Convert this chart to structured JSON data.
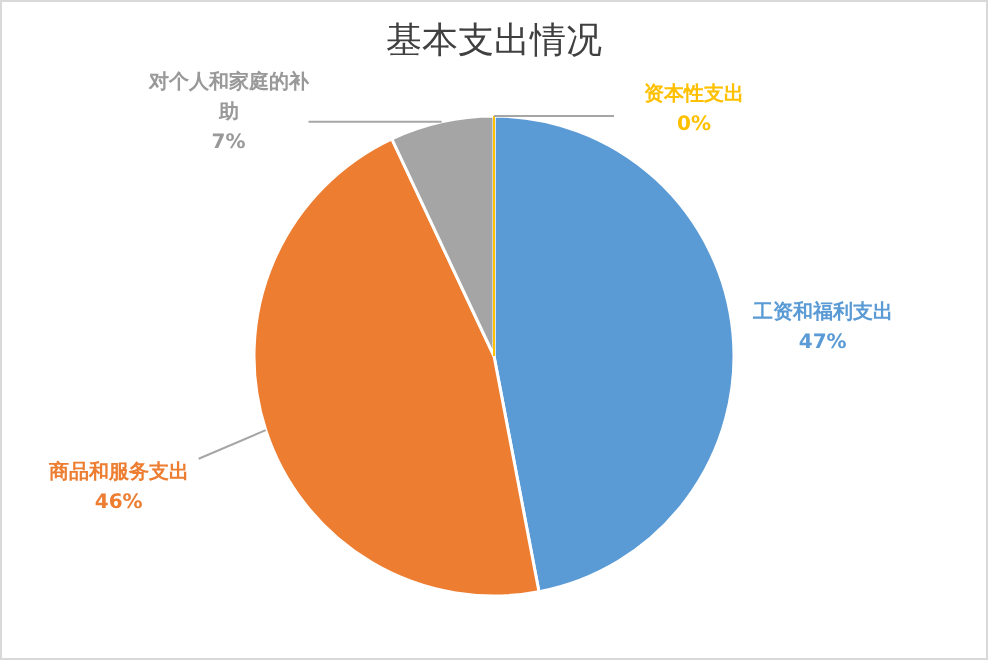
{
  "chart_data": {
    "type": "pie",
    "title": "基本支出情况",
    "categories": [
      "工资和福利支出",
      "商品和服务支出",
      "对个人和家庭的补助",
      "资本性支出"
    ],
    "values": [
      47,
      46,
      7,
      0
    ],
    "value_labels": [
      "47%",
      "46%",
      "7%",
      "0%"
    ],
    "colors": [
      "#5b9bd5",
      "#ed7d31",
      "#a5a5a5",
      "#ffc000"
    ]
  }
}
